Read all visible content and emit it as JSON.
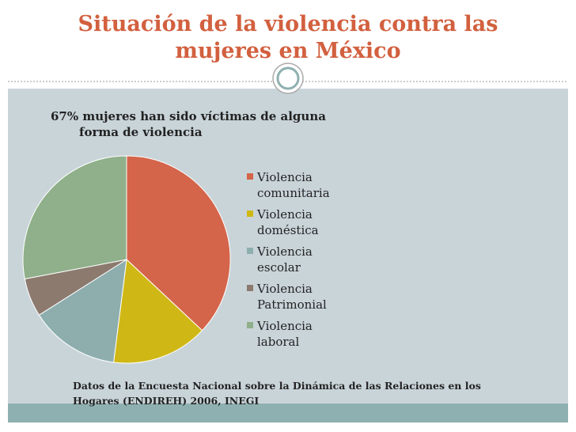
{
  "slide_title": "Situación de la violencia contra las mujeres en México",
  "chart_data": {
    "type": "pie",
    "title": "67% mujeres han sido víctimas de alguna forma de violencia",
    "categories": [
      "Violencia comunitaria",
      "Violencia doméstica",
      "Violencia escolar",
      "Violencia Patrimonial",
      "Violencia laboral"
    ],
    "values": [
      37,
      15,
      14,
      6,
      28
    ],
    "colors": [
      "#d4654a",
      "#cfb816",
      "#8eaeae",
      "#8c7a6e",
      "#8fb08a"
    ],
    "legend": "right"
  },
  "source": "Datos de la Encuesta Nacional sobre la Dinámica de las Relaciones en los Hogares (ENDIREH) 2006, INEGI"
}
